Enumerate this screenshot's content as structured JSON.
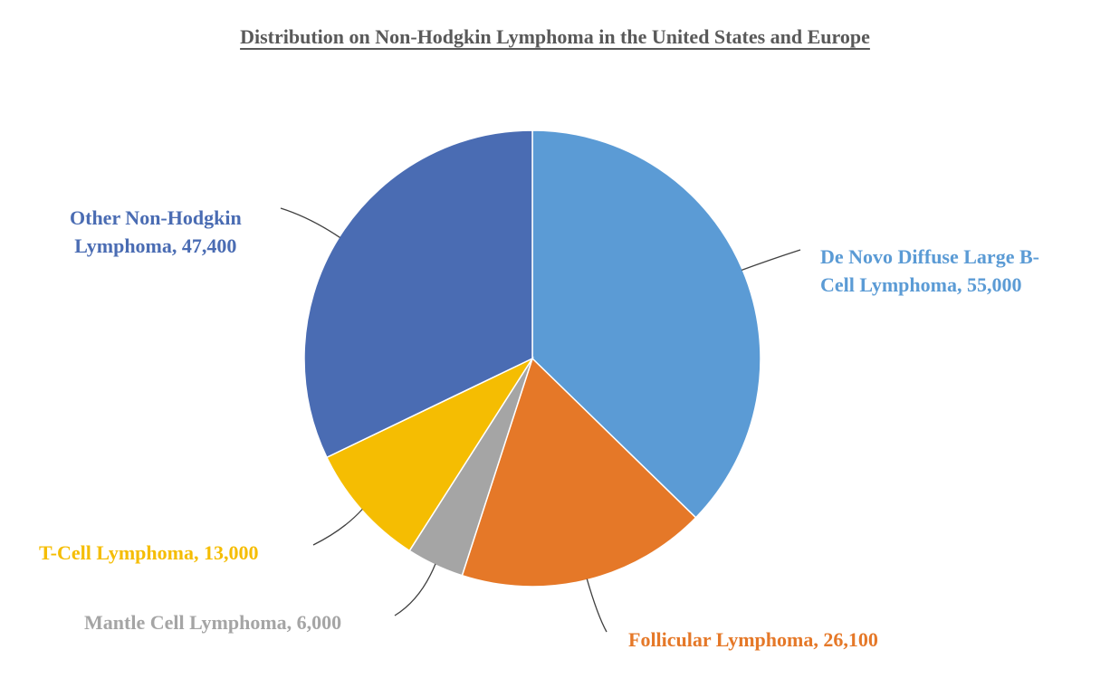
{
  "chart_data": {
    "type": "pie",
    "title": "Distribution on Non-Hodgkin Lymphoma in the United States and Europe",
    "categories": [
      "De Novo Diffuse Large B-Cell Lymphoma",
      "Follicular Lymphoma",
      "Mantle Cell Lymphoma",
      "T-Cell Lymphoma",
      "Other Non-Hodgkin Lymphoma"
    ],
    "values": [
      55000,
      26100,
      6000,
      13000,
      47400
    ],
    "colors": [
      "#5B9BD5",
      "#E57828",
      "#A5A5A5",
      "#F5BD02",
      "#4A6CB3"
    ],
    "start_angle_deg": 0,
    "direction": "clockwise",
    "legend": "none",
    "data_labels": [
      {
        "lines": [
          "De Novo Diffuse Large B-",
          "Cell Lymphoma, 55,000"
        ]
      },
      {
        "lines": [
          "Follicular Lymphoma, 26,100"
        ]
      },
      {
        "lines": [
          "Mantle Cell Lymphoma, 6,000"
        ]
      },
      {
        "lines": [
          "T-Cell Lymphoma, 13,000"
        ]
      },
      {
        "lines": [
          "Other Non-Hodgkin",
          "Lymphoma, 47,400"
        ]
      }
    ]
  }
}
